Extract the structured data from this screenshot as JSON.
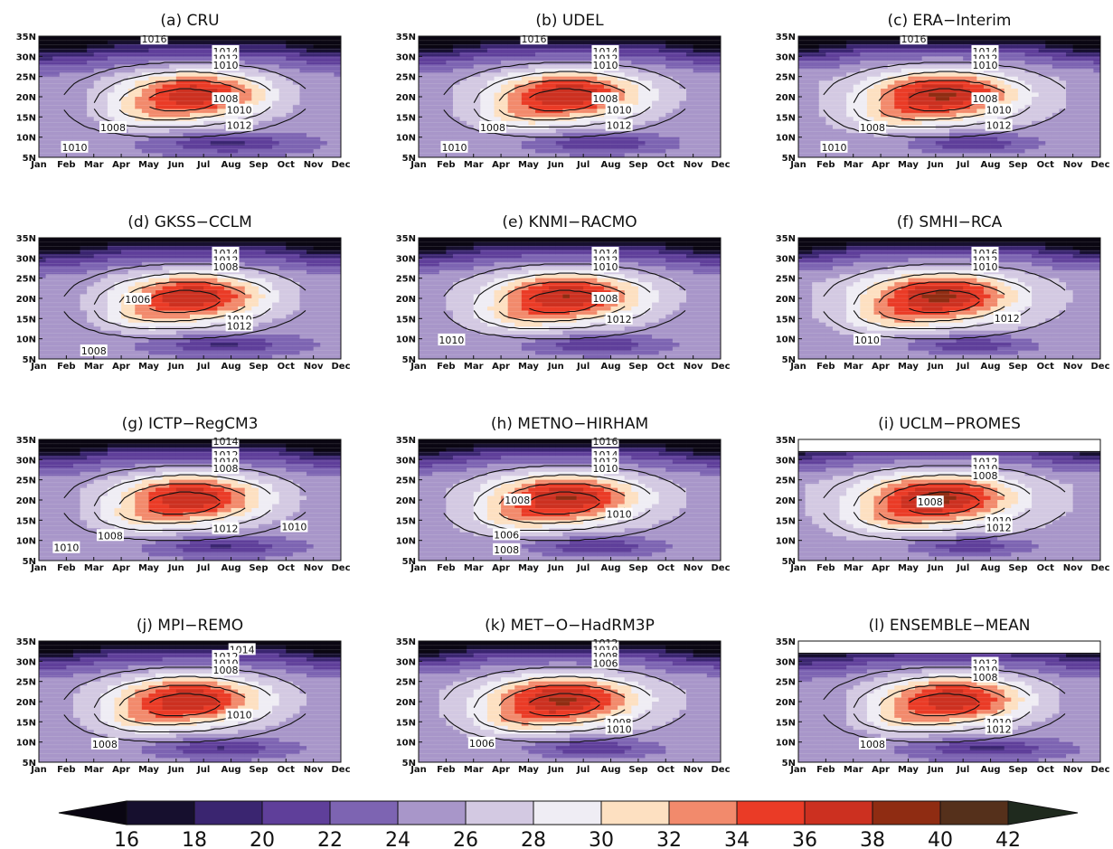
{
  "chart_data": {
    "type": "heatmap",
    "shared_axes": {
      "x_ticks": [
        "Jan",
        "Feb",
        "Mar",
        "Apr",
        "May",
        "Jun",
        "Jul",
        "Aug",
        "Sep",
        "Oct",
        "Nov",
        "Dec"
      ],
      "y_ticks": [
        "5N",
        "10N",
        "15N",
        "20N",
        "25N",
        "30N",
        "35N"
      ],
      "y_range": [
        5,
        35
      ]
    },
    "colorbar": {
      "ticks": [
        "16",
        "18",
        "20",
        "22",
        "24",
        "26",
        "28",
        "30",
        "32",
        "34",
        "36",
        "38",
        "40",
        "42"
      ],
      "bins": [
        16,
        18,
        20,
        22,
        24,
        26,
        28,
        30,
        32,
        34,
        36,
        38,
        40,
        42
      ],
      "colors": [
        "#0a0612",
        "#160f2e",
        "#3a2570",
        "#5f3f9a",
        "#7d64b2",
        "#a896c9",
        "#d3c9e2",
        "#efedf4",
        "#fde0c1",
        "#f28a6c",
        "#ea3b26",
        "#cc3020",
        "#8f2c12",
        "#55301b",
        "#1f2a1e"
      ]
    },
    "panels": [
      {
        "title": "(a) CRU",
        "masked_top": false,
        "contour_labels": [
          {
            "text": "1016",
            "month": 5.2,
            "lat": 34.3
          },
          {
            "text": "1014",
            "month": 7.8,
            "lat": 31.2
          },
          {
            "text": "1012",
            "month": 7.8,
            "lat": 29.5
          },
          {
            "text": "1010",
            "month": 7.8,
            "lat": 27.8
          },
          {
            "text": "1008",
            "month": 7.8,
            "lat": 19.5
          },
          {
            "text": "1010",
            "month": 8.3,
            "lat": 16.7
          },
          {
            "text": "1008",
            "month": 3.7,
            "lat": 12.4
          },
          {
            "text": "1012",
            "month": 8.3,
            "lat": 12.9
          },
          {
            "text": "1010",
            "month": 2.3,
            "lat": 7.5
          }
        ]
      },
      {
        "title": "(b) UDEL",
        "masked_top": false,
        "contour_labels": [
          {
            "text": "1016",
            "month": 5.2,
            "lat": 34.3
          },
          {
            "text": "1014",
            "month": 7.8,
            "lat": 31.2
          },
          {
            "text": "1012",
            "month": 7.8,
            "lat": 29.5
          },
          {
            "text": "1010",
            "month": 7.8,
            "lat": 27.8
          },
          {
            "text": "1008",
            "month": 7.8,
            "lat": 19.5
          },
          {
            "text": "1010",
            "month": 8.3,
            "lat": 16.7
          },
          {
            "text": "1008",
            "month": 3.7,
            "lat": 12.4
          },
          {
            "text": "1012",
            "month": 8.3,
            "lat": 12.9
          },
          {
            "text": "1010",
            "month": 2.3,
            "lat": 7.5
          }
        ]
      },
      {
        "title": "(c) ERA−Interim",
        "masked_top": false,
        "contour_labels": [
          {
            "text": "1016",
            "month": 5.2,
            "lat": 34.3
          },
          {
            "text": "1014",
            "month": 7.8,
            "lat": 31.2
          },
          {
            "text": "1012",
            "month": 7.8,
            "lat": 29.5
          },
          {
            "text": "1010",
            "month": 7.8,
            "lat": 27.8
          },
          {
            "text": "1008",
            "month": 7.8,
            "lat": 19.5
          },
          {
            "text": "1010",
            "month": 8.3,
            "lat": 16.7
          },
          {
            "text": "1008",
            "month": 3.7,
            "lat": 12.4
          },
          {
            "text": "1012",
            "month": 8.3,
            "lat": 12.9
          },
          {
            "text": "1010",
            "month": 2.3,
            "lat": 7.5
          }
        ]
      },
      {
        "title": "(d) GKSS−CCLM",
        "masked_top": false,
        "contour_labels": [
          {
            "text": "1014",
            "month": 7.8,
            "lat": 31.2
          },
          {
            "text": "1012",
            "month": 7.8,
            "lat": 29.5
          },
          {
            "text": "1008",
            "month": 7.8,
            "lat": 27.8
          },
          {
            "text": "1006",
            "month": 4.6,
            "lat": 19.8
          },
          {
            "text": "1010",
            "month": 8.3,
            "lat": 14.9
          },
          {
            "text": "1012",
            "month": 8.3,
            "lat": 13.2
          },
          {
            "text": "1008",
            "month": 3.0,
            "lat": 7.0
          }
        ]
      },
      {
        "title": "(e) KNMI−RACMO",
        "masked_top": false,
        "contour_labels": [
          {
            "text": "1014",
            "month": 7.8,
            "lat": 31.2
          },
          {
            "text": "1012",
            "month": 7.8,
            "lat": 29.5
          },
          {
            "text": "1010",
            "month": 7.8,
            "lat": 27.8
          },
          {
            "text": "1008",
            "month": 7.8,
            "lat": 20.0
          },
          {
            "text": "1012",
            "month": 8.3,
            "lat": 14.9
          },
          {
            "text": "1010",
            "month": 2.2,
            "lat": 9.7
          }
        ]
      },
      {
        "title": "(f) SMHI−RCA",
        "masked_top": false,
        "contour_labels": [
          {
            "text": "1016",
            "month": 7.8,
            "lat": 31.2
          },
          {
            "text": "1012",
            "month": 7.8,
            "lat": 29.5
          },
          {
            "text": "1010",
            "month": 7.8,
            "lat": 27.8
          },
          {
            "text": "1012",
            "month": 8.6,
            "lat": 15.1
          },
          {
            "text": "1010",
            "month": 3.5,
            "lat": 9.7
          }
        ]
      },
      {
        "title": "(g) ICTP−RegCM3",
        "masked_top": false,
        "contour_labels": [
          {
            "text": "1014",
            "month": 7.8,
            "lat": 34.5
          },
          {
            "text": "1012",
            "month": 7.8,
            "lat": 31.2
          },
          {
            "text": "1010",
            "month": 7.8,
            "lat": 29.5
          },
          {
            "text": "1008",
            "month": 7.8,
            "lat": 27.8
          },
          {
            "text": "1012",
            "month": 7.8,
            "lat": 12.9
          },
          {
            "text": "1010",
            "month": 10.3,
            "lat": 13.4
          },
          {
            "text": "1008",
            "month": 3.6,
            "lat": 11.2
          },
          {
            "text": "1010",
            "month": 2.0,
            "lat": 8.2
          }
        ]
      },
      {
        "title": "(h) METNO−HIRHAM",
        "masked_top": false,
        "contour_labels": [
          {
            "text": "1016",
            "month": 7.8,
            "lat": 34.5
          },
          {
            "text": "1014",
            "month": 7.8,
            "lat": 31.2
          },
          {
            "text": "1012",
            "month": 7.8,
            "lat": 29.5
          },
          {
            "text": "1010",
            "month": 7.8,
            "lat": 27.8
          },
          {
            "text": "1008",
            "month": 4.6,
            "lat": 20.0
          },
          {
            "text": "1010",
            "month": 8.3,
            "lat": 16.5
          },
          {
            "text": "1006",
            "month": 4.2,
            "lat": 11.4
          },
          {
            "text": "1008",
            "month": 4.2,
            "lat": 7.7
          }
        ]
      },
      {
        "title": "(i) UCLM−PROMES",
        "masked_top": true,
        "contour_labels": [
          {
            "text": "1012",
            "month": 7.8,
            "lat": 29.5
          },
          {
            "text": "1010",
            "month": 7.8,
            "lat": 27.8
          },
          {
            "text": "1008",
            "month": 7.8,
            "lat": 26.1
          },
          {
            "text": "1008",
            "month": 5.8,
            "lat": 19.5
          },
          {
            "text": "1010",
            "month": 8.3,
            "lat": 14.9
          },
          {
            "text": "1012",
            "month": 8.3,
            "lat": 13.2
          }
        ]
      },
      {
        "title": "(j) MPI−REMO",
        "masked_top": false,
        "contour_labels": [
          {
            "text": "1014",
            "month": 8.4,
            "lat": 32.9
          },
          {
            "text": "1012",
            "month": 7.8,
            "lat": 31.2
          },
          {
            "text": "1010",
            "month": 7.8,
            "lat": 29.5
          },
          {
            "text": "1008",
            "month": 7.8,
            "lat": 27.8
          },
          {
            "text": "1010",
            "month": 8.3,
            "lat": 16.7
          },
          {
            "text": "1008",
            "month": 3.4,
            "lat": 9.5
          }
        ]
      },
      {
        "title": "(k) MET−O−HadRM3P",
        "masked_top": false,
        "contour_labels": [
          {
            "text": "1012",
            "month": 7.8,
            "lat": 34.5
          },
          {
            "text": "1010",
            "month": 7.8,
            "lat": 32.9
          },
          {
            "text": "1008",
            "month": 7.8,
            "lat": 31.2
          },
          {
            "text": "1006",
            "month": 7.8,
            "lat": 29.5
          },
          {
            "text": "1008",
            "month": 8.3,
            "lat": 14.9
          },
          {
            "text": "1010",
            "month": 8.3,
            "lat": 13.2
          },
          {
            "text": "1006",
            "month": 3.3,
            "lat": 9.7
          }
        ]
      },
      {
        "title": "(l) ENSEMBLE−MEAN",
        "masked_top": true,
        "contour_labels": [
          {
            "text": "1012",
            "month": 7.8,
            "lat": 29.5
          },
          {
            "text": "1010",
            "month": 7.8,
            "lat": 27.8
          },
          {
            "text": "1008",
            "month": 7.8,
            "lat": 26.1
          },
          {
            "text": "1010",
            "month": 8.3,
            "lat": 14.9
          },
          {
            "text": "1012",
            "month": 8.3,
            "lat": 13.2
          },
          {
            "text": "1008",
            "month": 3.7,
            "lat": 9.5
          }
        ]
      }
    ]
  }
}
